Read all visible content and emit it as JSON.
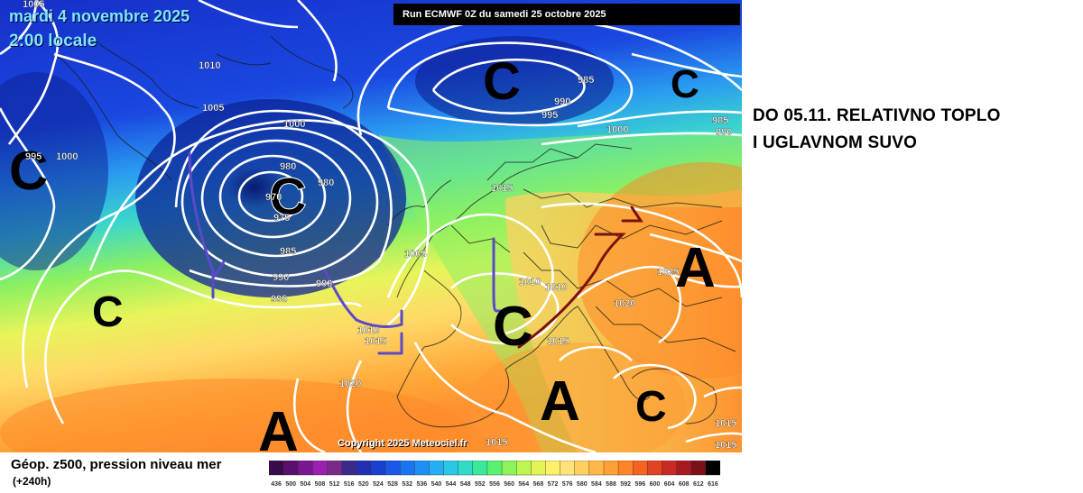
{
  "header": {
    "date": "mardi 4 novembre 2025",
    "time": "2:00 locale",
    "run": "Run ECMWF 0Z du samedi 25 octobre 2025"
  },
  "copyright": "Copyright 2025 Meteociel.fr",
  "legend": {
    "title": "Géop. z500, pression niveau mer",
    "subtitle": "(+240h)",
    "scale_values": [
      "436",
      "500",
      "504",
      "508",
      "512",
      "516",
      "520",
      "524",
      "528",
      "532",
      "536",
      "540",
      "544",
      "548",
      "552",
      "556",
      "560",
      "564",
      "568",
      "572",
      "576",
      "580",
      "584",
      "588",
      "592",
      "596",
      "600",
      "604",
      "608",
      "612",
      "616"
    ],
    "scale_colors": [
      "#3a0a4a",
      "#5a0f6e",
      "#7a1690",
      "#9a20b0",
      "#7a2b8a",
      "#3a2a8a",
      "#2030b0",
      "#1a40d0",
      "#1a58e8",
      "#1a74f0",
      "#1e90f4",
      "#26aef2",
      "#2ac8e6",
      "#30dcc8",
      "#3ae89a",
      "#5af070",
      "#8cf45a",
      "#bcf650",
      "#e4f454",
      "#fff06a",
      "#ffe37a",
      "#ffd060",
      "#ffb848",
      "#ffa034",
      "#ff8428",
      "#f46420",
      "#e04420",
      "#c82a24",
      "#a81a22",
      "#7a1018",
      "#000000"
    ]
  },
  "note": {
    "line1": "DO 05.11. RELATIVNO TOPLO",
    "line2": "I UGLAVNOM SUVO"
  },
  "systems": [
    {
      "letter": "C",
      "label": "low-pressure-center-atlantic"
    },
    {
      "letter": "C",
      "label": "low-pressure-center-north"
    },
    {
      "letter": "C",
      "label": "low-pressure-center-northeast"
    },
    {
      "letter": "C",
      "label": "low-pressure-center-west-edge"
    },
    {
      "letter": "C",
      "label": "low-pressure-center-southwest"
    },
    {
      "letter": "C",
      "label": "low-pressure-center-france"
    },
    {
      "letter": "C",
      "label": "low-pressure-center-southeast"
    },
    {
      "letter": "A",
      "label": "high-pressure-center-east"
    },
    {
      "letter": "A",
      "label": "high-pressure-center-mediterranean"
    },
    {
      "letter": "A",
      "label": "high-pressure-center-southwest"
    }
  ],
  "isobar_labels": [
    "1005",
    "1010",
    "1005",
    "1000",
    "995",
    "1000",
    "980",
    "980",
    "970",
    "975",
    "985",
    "990",
    "995",
    "990",
    "1005",
    "1010",
    "1015",
    "1015",
    "1010",
    "1010",
    "1020",
    "1015",
    "1020",
    "1025",
    "1015",
    "1015",
    "1015",
    "985",
    "990",
    "995",
    "1000",
    "985",
    "990"
  ]
}
